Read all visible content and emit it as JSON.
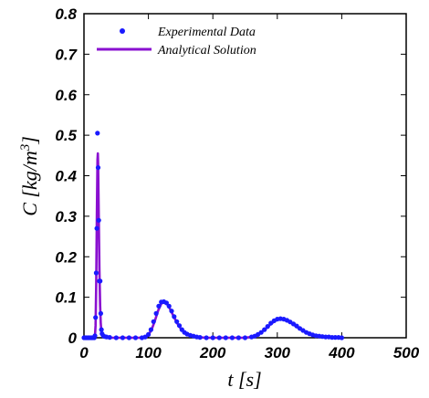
{
  "chart_data": {
    "type": "line",
    "xlabel": "t [s]",
    "ylabel": "C [kg/m^3]",
    "xlim": [
      0,
      500
    ],
    "ylim": [
      0,
      0.8
    ],
    "xticks": [
      "0",
      "100",
      "200",
      "300",
      "400",
      "500"
    ],
    "yticks": [
      "0",
      "0.1",
      "0.2",
      "0.3",
      "0.4",
      "0.5",
      "0.6",
      "0.7",
      "0.8"
    ],
    "grid": false,
    "legend_position": "top-left",
    "series": [
      {
        "name": "Experimental Data",
        "style": "markers",
        "color": "#1a1aff",
        "points": [
          [
            0,
            0
          ],
          [
            2,
            0
          ],
          [
            4,
            0
          ],
          [
            6,
            0
          ],
          [
            8,
            0
          ],
          [
            10,
            0
          ],
          [
            12,
            0
          ],
          [
            14,
            0
          ],
          [
            16,
            0
          ],
          [
            17,
            0.005
          ],
          [
            18,
            0.05
          ],
          [
            19,
            0.16
          ],
          [
            20,
            0.27
          ],
          [
            21,
            0.505
          ],
          [
            22,
            0.42
          ],
          [
            23,
            0.29
          ],
          [
            24,
            0.14
          ],
          [
            25,
            0.14
          ],
          [
            26,
            0.06
          ],
          [
            27,
            0.02
          ],
          [
            28,
            0.01
          ],
          [
            30,
            0.005
          ],
          [
            32,
            0.003
          ],
          [
            35,
            0.002
          ],
          [
            40,
            0.001
          ],
          [
            50,
            0
          ],
          [
            60,
            0
          ],
          [
            70,
            0
          ],
          [
            80,
            0
          ],
          [
            90,
            0
          ],
          [
            95,
            0.002
          ],
          [
            100,
            0.008
          ],
          [
            104,
            0.02
          ],
          [
            108,
            0.04
          ],
          [
            112,
            0.06
          ],
          [
            116,
            0.078
          ],
          [
            120,
            0.088
          ],
          [
            124,
            0.089
          ],
          [
            128,
            0.086
          ],
          [
            132,
            0.078
          ],
          [
            136,
            0.066
          ],
          [
            140,
            0.052
          ],
          [
            144,
            0.04
          ],
          [
            148,
            0.03
          ],
          [
            152,
            0.02
          ],
          [
            156,
            0.013
          ],
          [
            160,
            0.009
          ],
          [
            165,
            0.006
          ],
          [
            170,
            0.004
          ],
          [
            175,
            0.002
          ],
          [
            180,
            0.001
          ],
          [
            190,
            0
          ],
          [
            200,
            0
          ],
          [
            210,
            0
          ],
          [
            220,
            0
          ],
          [
            230,
            0
          ],
          [
            240,
            0
          ],
          [
            250,
            0
          ],
          [
            260,
            0.002
          ],
          [
            265,
            0.004
          ],
          [
            270,
            0.008
          ],
          [
            275,
            0.013
          ],
          [
            280,
            0.02
          ],
          [
            285,
            0.028
          ],
          [
            290,
            0.036
          ],
          [
            295,
            0.042
          ],
          [
            300,
            0.046
          ],
          [
            305,
            0.047
          ],
          [
            310,
            0.046
          ],
          [
            315,
            0.043
          ],
          [
            320,
            0.039
          ],
          [
            325,
            0.034
          ],
          [
            330,
            0.029
          ],
          [
            335,
            0.023
          ],
          [
            340,
            0.018
          ],
          [
            345,
            0.013
          ],
          [
            350,
            0.01
          ],
          [
            355,
            0.007
          ],
          [
            360,
            0.005
          ],
          [
            365,
            0.004
          ],
          [
            370,
            0.003
          ],
          [
            375,
            0.002
          ],
          [
            380,
            0.002
          ],
          [
            385,
            0.001
          ],
          [
            390,
            0.001
          ],
          [
            395,
            0.001
          ],
          [
            400,
            0
          ]
        ]
      },
      {
        "name": "Analytical Solution",
        "style": "line",
        "color": "#8a10d0",
        "points": [
          [
            0,
            0
          ],
          [
            15,
            0
          ],
          [
            17,
            0.003
          ],
          [
            18,
            0.03
          ],
          [
            19,
            0.13
          ],
          [
            20,
            0.3
          ],
          [
            21,
            0.44
          ],
          [
            21.5,
            0.455
          ],
          [
            22,
            0.43
          ],
          [
            23,
            0.3
          ],
          [
            24,
            0.17
          ],
          [
            25,
            0.08
          ],
          [
            26,
            0.035
          ],
          [
            27,
            0.015
          ],
          [
            28,
            0.006
          ],
          [
            30,
            0.002
          ],
          [
            35,
            0
          ],
          [
            90,
            0
          ],
          [
            95,
            0.002
          ],
          [
            100,
            0.007
          ],
          [
            105,
            0.02
          ],
          [
            110,
            0.042
          ],
          [
            115,
            0.067
          ],
          [
            120,
            0.084
          ],
          [
            124,
            0.088
          ],
          [
            128,
            0.085
          ],
          [
            132,
            0.076
          ],
          [
            136,
            0.063
          ],
          [
            140,
            0.05
          ],
          [
            145,
            0.035
          ],
          [
            150,
            0.023
          ],
          [
            155,
            0.014
          ],
          [
            160,
            0.008
          ],
          [
            165,
            0.005
          ],
          [
            170,
            0.003
          ],
          [
            180,
            0.001
          ],
          [
            190,
            0
          ],
          [
            250,
            0
          ],
          [
            260,
            0.002
          ],
          [
            270,
            0.008
          ],
          [
            280,
            0.019
          ],
          [
            290,
            0.034
          ],
          [
            300,
            0.045
          ],
          [
            305,
            0.046
          ],
          [
            310,
            0.045
          ],
          [
            320,
            0.038
          ],
          [
            330,
            0.027
          ],
          [
            340,
            0.017
          ],
          [
            350,
            0.009
          ],
          [
            360,
            0.005
          ],
          [
            370,
            0.002
          ],
          [
            380,
            0.001
          ],
          [
            390,
            0
          ],
          [
            402,
            0
          ]
        ]
      }
    ]
  }
}
